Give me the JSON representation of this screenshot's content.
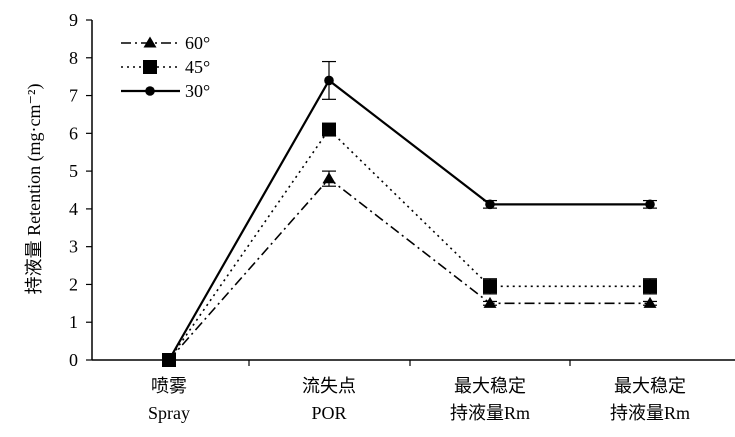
{
  "chart_data": {
    "type": "line",
    "categories": [
      [
        "喷雾",
        "Spray"
      ],
      [
        "流失点",
        "POR"
      ],
      [
        "最大稳定",
        "持液量Rm"
      ],
      [
        "最大稳定",
        "持液量Rm"
      ]
    ],
    "ylabel": "持液量 Retention (mg·cm⁻²)",
    "ylim": [
      0,
      9
    ],
    "yticks": [
      0,
      1,
      2,
      3,
      4,
      5,
      6,
      7,
      8,
      9
    ],
    "grid": false,
    "legend_position": "top-left",
    "series": [
      {
        "name": "60°",
        "marker": "triangle",
        "dash": "dash-dot",
        "values": [
          0,
          4.8,
          1.5,
          1.5
        ],
        "errors": [
          0,
          0.2,
          0.05,
          0.05
        ]
      },
      {
        "name": "45°",
        "marker": "square",
        "dash": "dotted",
        "values": [
          0,
          6.1,
          1.95,
          1.95
        ],
        "errors": [
          0,
          0.15,
          0.2,
          0.2
        ]
      },
      {
        "name": "30°",
        "marker": "circle",
        "dash": "solid",
        "values": [
          0,
          7.4,
          4.12,
          4.12
        ],
        "errors": [
          0,
          0.5,
          0.1,
          0.1
        ]
      }
    ]
  }
}
